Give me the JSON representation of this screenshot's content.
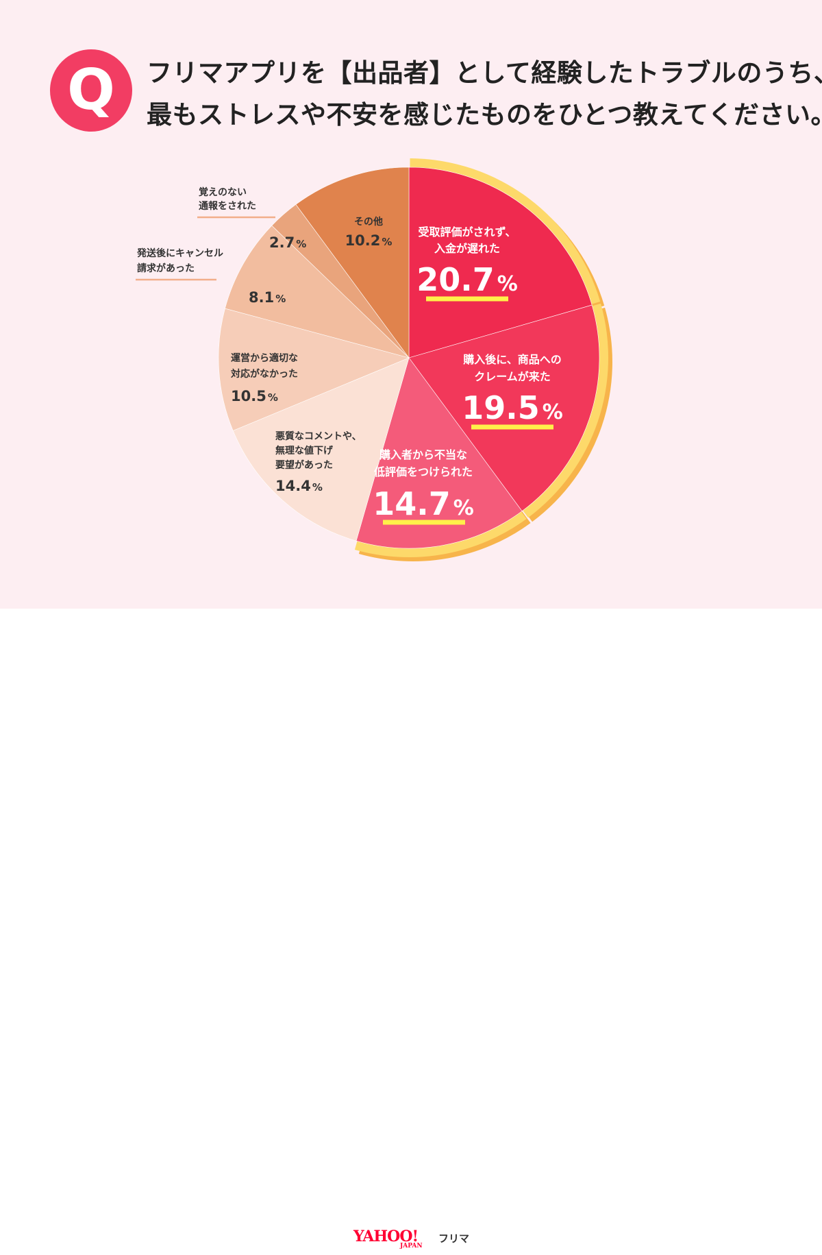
{
  "question": {
    "badge": "Q",
    "line1": "フリマアプリを【出品者】として経験したトラブルのうち、",
    "line2": "最もストレスや不安を感じたものをひとつ教えてください。"
  },
  "chart_data": {
    "type": "pie",
    "title": "",
    "slices": [
      {
        "label": "受取評価がされず、入金が遅れた",
        "label_lines": [
          "受取評価がされず、",
          "入金が遅れた"
        ],
        "value": 20.7,
        "value_text": "20.7",
        "unit": "%",
        "color": "#ef2a4f",
        "highlight": true
      },
      {
        "label": "購入後に、商品へのクレームが来た",
        "label_lines": [
          "購入後に、商品への",
          "クレームが来た"
        ],
        "value": 19.5,
        "value_text": "19.5",
        "unit": "%",
        "color": "#f2385a",
        "highlight": true
      },
      {
        "label": "購入者から不当な低評価をつけられた",
        "label_lines": [
          "購入者から不当な",
          "低評価をつけられた"
        ],
        "value": 14.7,
        "value_text": "14.7",
        "unit": "%",
        "color": "#f45b7a",
        "highlight": true
      },
      {
        "label": "悪質なコメントや、無理な値下げ要望があった",
        "label_lines": [
          "悪質なコメントや、",
          "無理な値下げ",
          "要望があった"
        ],
        "value": 14.4,
        "value_text": "14.4",
        "unit": "%",
        "color": "#fbe1d5",
        "highlight": false
      },
      {
        "label": "運営から適切な対応がなかった",
        "label_lines": [
          "運営から適切な",
          "対応がなかった"
        ],
        "value": 10.5,
        "value_text": "10.5",
        "unit": "%",
        "color": "#f6cdb8",
        "highlight": false
      },
      {
        "label": "発送後にキャンセル請求があった",
        "label_lines": [
          "発送後にキャンセル",
          "請求があった"
        ],
        "value": 8.1,
        "value_text": "8.1",
        "unit": "%",
        "color": "#f2bd9f",
        "highlight": false
      },
      {
        "label": "覚えのない通報をされた",
        "label_lines": [
          "覚えのない",
          "通報をされた"
        ],
        "value": 2.7,
        "value_text": "2.7",
        "unit": "%",
        "color": "#e9a47c",
        "highlight": false
      },
      {
        "label": "その他",
        "label_lines": [
          "その他"
        ],
        "value": 10.2,
        "value_text": "10.2",
        "unit": "%",
        "color": "#e0834d",
        "highlight": false
      }
    ],
    "start_angle_deg": 0,
    "direction": "clockwise",
    "colors": {
      "ring": "#fdd96a",
      "ring_shadow": "#f7b44b",
      "underline_highlight": "#fff04a",
      "underline_outside": "#f2ae8a"
    }
  },
  "footer": {
    "logo_yahoo": "YAHOO!",
    "logo_japan": "JAPAN",
    "logo_service": "フリマ"
  }
}
